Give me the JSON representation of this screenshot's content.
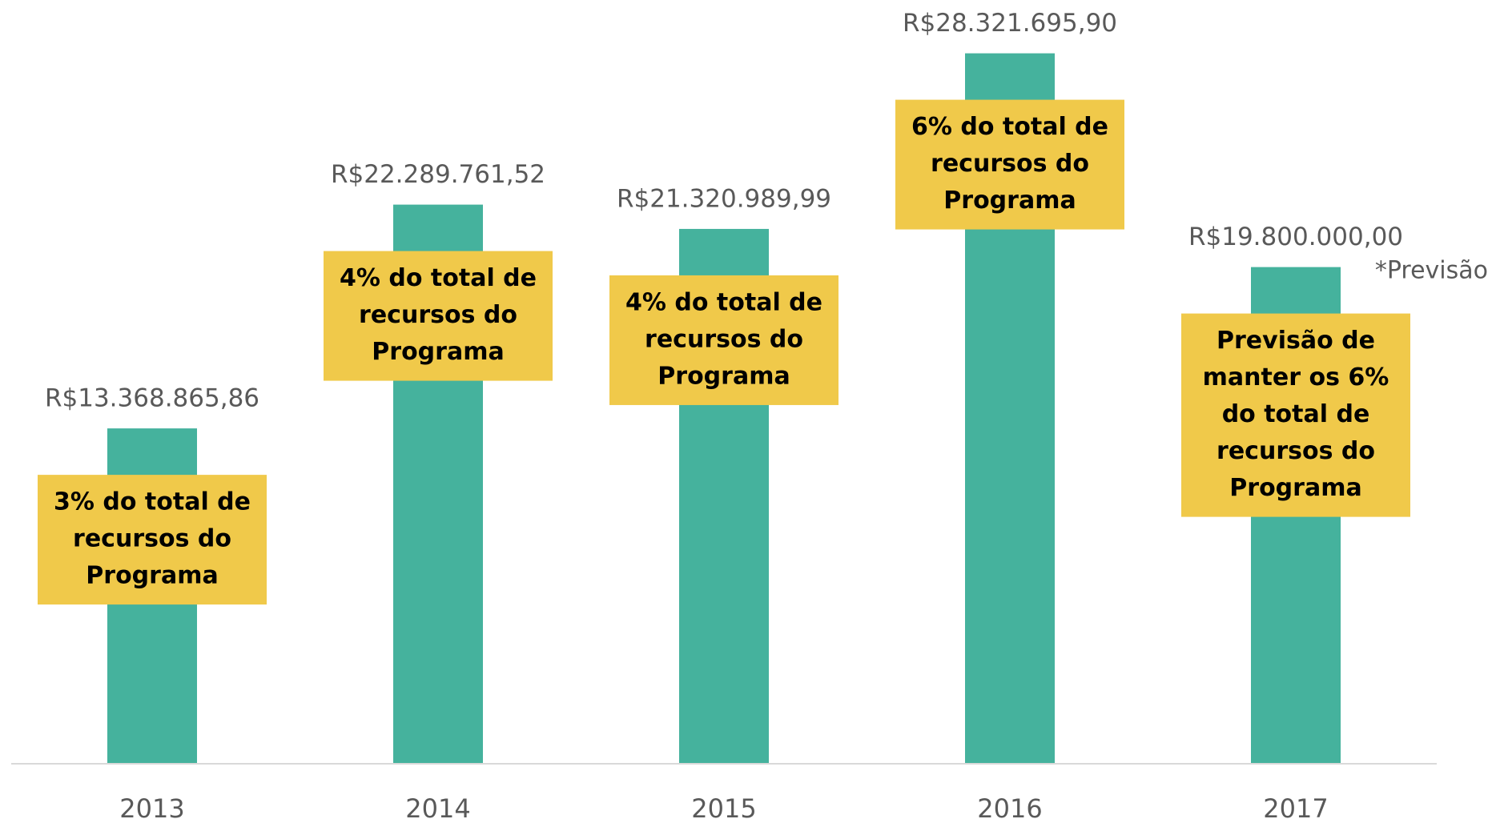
{
  "chart_data": {
    "type": "bar",
    "categories": [
      "2013",
      "2014",
      "2015",
      "2016",
      "2017"
    ],
    "values": [
      13368865.86,
      22289761.52,
      21320989.99,
      28321695.9,
      19800000.0
    ],
    "value_labels": [
      "R$13.368.865,86",
      "R$22.289.761,52",
      "R$21.320.989,99",
      "R$28.321.695,90",
      "R$19.800.000,00"
    ],
    "color": "#45b29d",
    "ylim": [
      0,
      30000000
    ],
    "annotations": [
      [
        "3% do total de",
        "recursos do",
        "Programa"
      ],
      [
        "4% do total de",
        "recursos do",
        "Programa"
      ],
      [
        "4% do total de",
        "recursos do",
        "Programa"
      ],
      [
        "6% do total de",
        "recursos do",
        "Programa"
      ],
      [
        "Previsão de",
        "manter os 6%",
        "do total de",
        "recursos do",
        "Programa"
      ]
    ],
    "annotation_color": "#f0c94a",
    "note": "*Previsão"
  }
}
